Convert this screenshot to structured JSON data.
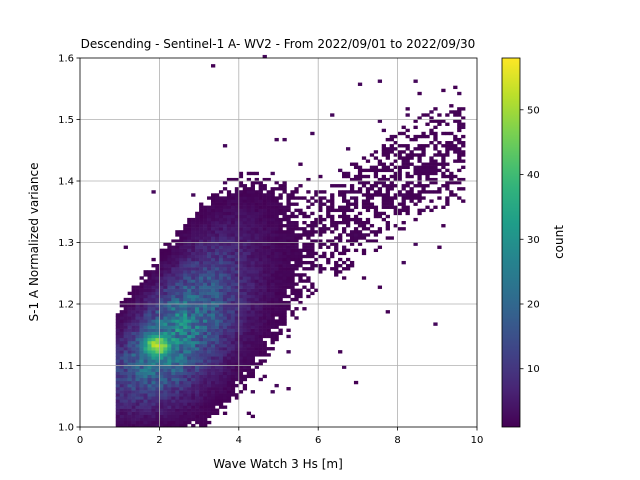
{
  "chart_data": {
    "type": "heatmap",
    "title": "Descending - Sentinel-1 A- WV2 - From 2022/09/01 to 2022/09/30",
    "xlabel": "Wave Watch 3 Hs [m]",
    "ylabel": "S-1 A Normalized variance",
    "xlim": [
      0,
      10
    ],
    "ylim": [
      1.0,
      1.6
    ],
    "xticks": [
      "0",
      "2",
      "4",
      "6",
      "8",
      "10"
    ],
    "yticks": [
      "1.0",
      "1.1",
      "1.2",
      "1.3",
      "1.4",
      "1.5",
      "1.6"
    ],
    "grid": true,
    "colormap": "viridis",
    "colorbar": {
      "label": "count",
      "range": [
        1,
        58
      ],
      "ticks": [
        "10",
        "20",
        "30",
        "40",
        "50"
      ]
    },
    "density_peak": {
      "x": 1.9,
      "y": 1.13,
      "count": 58
    },
    "ridge": [
      {
        "x": 1.0,
        "y": 1.09
      },
      {
        "x": 2.0,
        "y": 1.13
      },
      {
        "x": 3.0,
        "y": 1.18
      },
      {
        "x": 4.0,
        "y": 1.23
      },
      {
        "x": 5.0,
        "y": 1.27
      },
      {
        "x": 6.0,
        "y": 1.31
      },
      {
        "x": 7.0,
        "y": 1.35
      },
      {
        "x": 8.0,
        "y": 1.4
      },
      {
        "x": 9.0,
        "y": 1.44
      }
    ],
    "bins": {
      "x": 0.1,
      "y": 0.005
    }
  }
}
